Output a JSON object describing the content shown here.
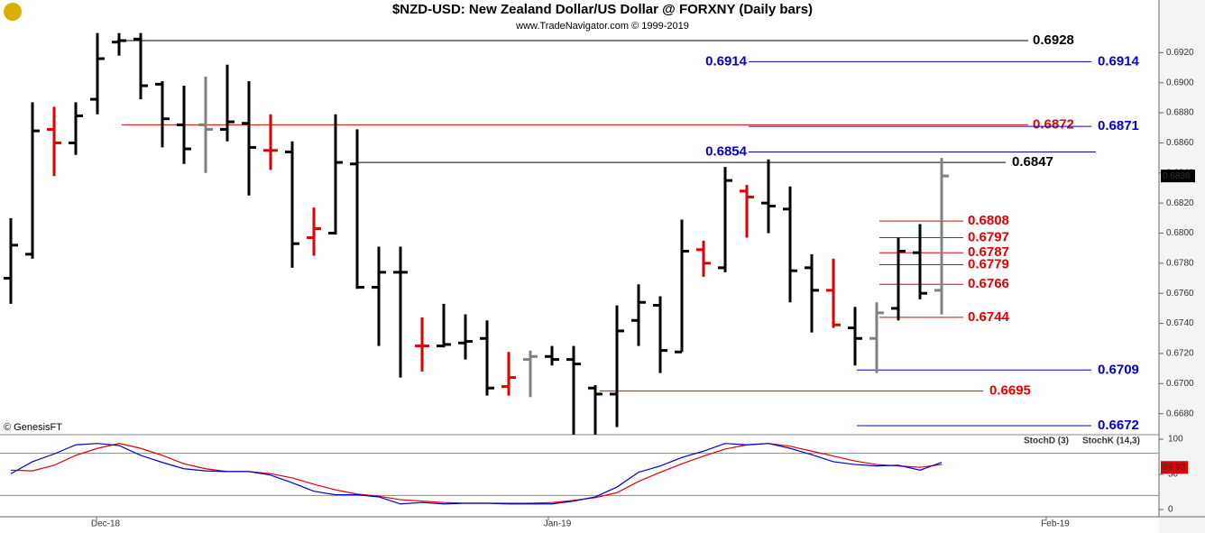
{
  "chart_data": [
    {
      "type": "ohlc",
      "title": "$NZD-USD:  New Zealand Dollar/US Dollar @ FORXNY  (Daily bars)",
      "subtitle": "www.TradeNavigator.com © 1999-2019",
      "watermark": "© GenesisFT",
      "x_labels": [
        "Dec-18",
        "Jan-19",
        "Feb-19"
      ],
      "ylim": [
        0.6666,
        0.6943
      ],
      "yticks": [
        {
          "value": 0.692,
          "label": "0.6920"
        },
        {
          "value": 0.69,
          "label": "0.6900"
        },
        {
          "value": 0.688,
          "label": "0.6880"
        },
        {
          "value": 0.686,
          "label": "0.6860"
        },
        {
          "value": 0.684,
          "label": "0.6840"
        },
        {
          "value": 0.682,
          "label": "0.6820"
        },
        {
          "value": 0.68,
          "label": "0.6800"
        },
        {
          "value": 0.678,
          "label": "0.6780"
        },
        {
          "value": 0.676,
          "label": "0.6760"
        },
        {
          "value": 0.674,
          "label": "0.6740"
        },
        {
          "value": 0.672,
          "label": "0.6720"
        },
        {
          "value": 0.67,
          "label": "0.6700"
        },
        {
          "value": 0.668,
          "label": "0.6680"
        }
      ],
      "open": [
        0.677,
        0.6786,
        0.6869,
        0.686,
        0.6889,
        0.6927,
        0.6929,
        0.6899,
        0.6872,
        0.6872,
        0.6869,
        0.6873,
        0.6855,
        0.6854,
        0.6797,
        0.68,
        0.6846,
        0.6764,
        0.6774,
        0.6725,
        0.6725,
        0.6727,
        0.673,
        0.6698,
        0.6716,
        0.6718,
        0.6716,
        0.6697,
        0.6693,
        0.6742,
        0.6752,
        0.6721,
        0.6789,
        0.6777,
        0.6828,
        0.682,
        0.6816,
        0.6777,
        0.6762,
        0.6737,
        0.673,
        0.675,
        0.6787,
        0.6762
      ],
      "high": [
        0.681,
        0.6887,
        0.6884,
        0.6887,
        0.6933,
        0.6933,
        0.6933,
        0.6901,
        0.6898,
        0.6904,
        0.6912,
        0.6901,
        0.6879,
        0.6861,
        0.6817,
        0.6879,
        0.6869,
        0.6791,
        0.6791,
        0.6744,
        0.6753,
        0.6746,
        0.6742,
        0.6721,
        0.6722,
        0.6725,
        0.6725,
        0.6699,
        0.6752,
        0.6766,
        0.6758,
        0.6809,
        0.6795,
        0.6844,
        0.6832,
        0.6849,
        0.6831,
        0.6786,
        0.6783,
        0.6751,
        0.6754,
        0.6797,
        0.6806,
        0.685
      ],
      "low": [
        0.6753,
        0.6783,
        0.6838,
        0.6852,
        0.6879,
        0.6918,
        0.6889,
        0.6857,
        0.6846,
        0.684,
        0.6861,
        0.6825,
        0.6842,
        0.6777,
        0.6785,
        0.6799,
        0.6763,
        0.6725,
        0.6704,
        0.6708,
        0.6724,
        0.6716,
        0.6692,
        0.6692,
        0.6691,
        0.6712,
        0.6666,
        0.6666,
        0.6671,
        0.6725,
        0.6707,
        0.6721,
        0.6771,
        0.6774,
        0.6797,
        0.68,
        0.6754,
        0.6734,
        0.6737,
        0.6712,
        0.6707,
        0.6742,
        0.6756,
        0.6746
      ],
      "close": [
        0.6792,
        0.6868,
        0.686,
        0.6878,
        0.6916,
        0.6928,
        0.6898,
        0.6876,
        0.6856,
        0.6869,
        0.6874,
        0.6857,
        0.6855,
        0.6793,
        0.6803,
        0.6847,
        0.6764,
        0.6774,
        0.6774,
        0.6725,
        0.6726,
        0.6728,
        0.6697,
        0.6704,
        0.6718,
        0.6716,
        0.6713,
        0.6693,
        0.6735,
        0.6754,
        0.6722,
        0.6788,
        0.678,
        0.6835,
        0.6824,
        0.6818,
        0.6775,
        0.6762,
        0.6739,
        0.673,
        0.6747,
        0.6788,
        0.676,
        0.6838
      ],
      "colors": [
        "#000000",
        "#000000",
        "#e00000",
        "#000000",
        "#000000",
        "#000000",
        "#000000",
        "#000000",
        "#000000",
        "#808080",
        "#000000",
        "#000000",
        "#e00000",
        "#000000",
        "#e00000",
        "#000000",
        "#000000",
        "#000000",
        "#000000",
        "#e00000",
        "#000000",
        "#000000",
        "#000000",
        "#e00000",
        "#808080",
        "#000000",
        "#000000",
        "#000000",
        "#000000",
        "#000000",
        "#000000",
        "#000000",
        "#e00000",
        "#000000",
        "#e00000",
        "#000000",
        "#000000",
        "#000000",
        "#e00000",
        "#000000",
        "#808080",
        "#000000",
        "#000000",
        "#808080"
      ],
      "levels": [
        {
          "value": 0.6928,
          "color": "#000000"
        },
        {
          "value": 0.6914,
          "color": "#0000cc"
        },
        {
          "value": 0.6872,
          "color": "#e00000"
        },
        {
          "value": 0.6871,
          "color": "#0000cc"
        },
        {
          "value": 0.6854,
          "color": "#0000cc"
        },
        {
          "value": 0.6847,
          "color": "#000000"
        },
        {
          "value": 0.6808,
          "color": "#e00000"
        },
        {
          "value": 0.6797,
          "color": "#e00000"
        },
        {
          "value": 0.6787,
          "color": "#e00000"
        },
        {
          "value": 0.6779,
          "color": "#e00000"
        },
        {
          "value": 0.6766,
          "color": "#e00000"
        },
        {
          "value": 0.6744,
          "color": "#e00000"
        },
        {
          "value": 0.6709,
          "color": "#0000cc"
        },
        {
          "value": 0.6695,
          "color": "#e00000"
        },
        {
          "value": 0.6672,
          "color": "#0000cc"
        }
      ]
    },
    {
      "type": "line",
      "ylim": [
        -12.8,
        106.4
      ],
      "yticks": [
        100,
        50,
        0
      ],
      "levels": [
        80,
        20
      ],
      "last_label": {
        "value": 59.9,
        "label": "59.90"
      },
      "series": [
        {
          "name": "StochD (3)",
          "color": "#e00000",
          "values": [
            56,
            55,
            63,
            77,
            87,
            94,
            87,
            77,
            65,
            58,
            54,
            54,
            51,
            45,
            36,
            28,
            22,
            19,
            14,
            12,
            10,
            9,
            9,
            9,
            9,
            10,
            13,
            17,
            24,
            40,
            53,
            65,
            76,
            86,
            92,
            94,
            90,
            83,
            76,
            69,
            64,
            62,
            60,
            64
          ]
        },
        {
          "name": "StochK (14,3)",
          "color": "#0000cc",
          "values": [
            51,
            68,
            79,
            92,
            94,
            91,
            77,
            67,
            58,
            55,
            54,
            54,
            49,
            38,
            26,
            21,
            21,
            18,
            8,
            10,
            8,
            9,
            9,
            8,
            8,
            8,
            12,
            18,
            32,
            53,
            62,
            74,
            83,
            94,
            92,
            94,
            87,
            78,
            68,
            64,
            62,
            63,
            56,
            67
          ]
        }
      ]
    }
  ]
}
